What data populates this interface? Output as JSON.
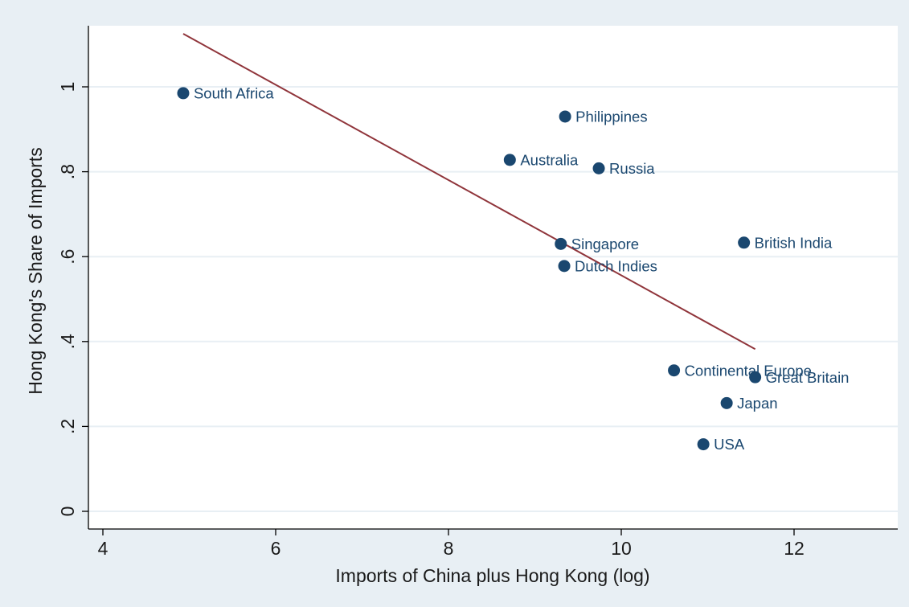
{
  "chart_data": {
    "type": "scatter",
    "title": "",
    "xlabel": "Imports of China plus Hong Kong (log)",
    "ylabel": "Hong Kong's Share of Imports",
    "xlim": [
      3.9,
      13.2
    ],
    "ylim": [
      -0.01,
      1.15
    ],
    "xticks": [
      4,
      6,
      8,
      10,
      12
    ],
    "yticks": [
      0,
      0.2,
      0.4,
      0.6,
      0.8,
      1
    ],
    "xtick_labels": [
      "4",
      "6",
      "8",
      "10",
      "12"
    ],
    "ytick_labels": [
      "0",
      ".2",
      ".4",
      ".6",
      ".8",
      "1"
    ],
    "grid": true,
    "points": [
      {
        "label": "South Africa",
        "x": 4.93,
        "y": 0.985
      },
      {
        "label": "Philippines",
        "x": 9.35,
        "y": 0.93
      },
      {
        "label": "Australia",
        "x": 8.71,
        "y": 0.828
      },
      {
        "label": "Russia",
        "x": 9.74,
        "y": 0.808
      },
      {
        "label": "Singapore",
        "x": 9.3,
        "y": 0.63
      },
      {
        "label": "British India",
        "x": 11.42,
        "y": 0.633
      },
      {
        "label": "Dutch Indies",
        "x": 9.34,
        "y": 0.578
      },
      {
        "label": "Continental Europe",
        "x": 10.61,
        "y": 0.332
      },
      {
        "label": "Great Britain",
        "x": 11.55,
        "y": 0.316
      },
      {
        "label": "Japan",
        "x": 11.22,
        "y": 0.255
      },
      {
        "label": "USA",
        "x": 10.95,
        "y": 0.158
      }
    ],
    "fit_line": {
      "x": [
        4.93,
        11.55
      ],
      "y": [
        1.125,
        0.382
      ]
    }
  }
}
